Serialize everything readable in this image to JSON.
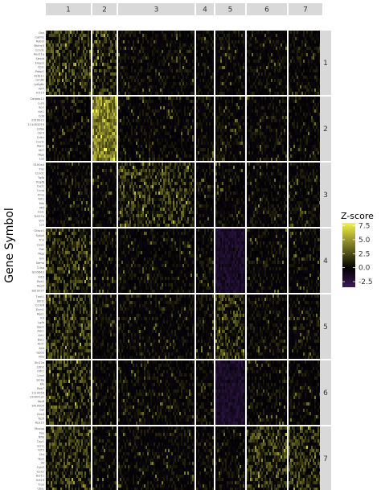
{
  "chart_data": {
    "type": "heatmap",
    "ylabel": "Gene Symbol",
    "column_facets": [
      "1",
      "2",
      "3",
      "4",
      "5",
      "6",
      "7"
    ],
    "row_facets": [
      "1",
      "2",
      "3",
      "4",
      "5",
      "6",
      "7"
    ],
    "legend": {
      "title": "Z-score",
      "placement": "right",
      "ticks": [
        7.5,
        5.0,
        2.5,
        0.0,
        -2.5
      ],
      "tick_labels": [
        "7.5",
        "5.0",
        "2.5",
        "0.0",
        "-2.5"
      ],
      "range": [
        -3.5,
        8
      ],
      "colors": {
        "low": "#3b1a5a",
        "mid": "#000000",
        "high": "#f5f24a"
      }
    },
    "genes_by_row_facet": [
      [
        "Gsn",
        "Calm1",
        "Rab1l",
        "Bhlhe3",
        "Ccnd1",
        "Aes11a",
        "Serpb",
        "Enpp2",
        "Cbj1",
        "Pabp1",
        "Actb11",
        "Gm6k",
        "Ly6g6c",
        "Kif7",
        "Krt19"
      ],
      [
        "Carpep12",
        "Lum",
        "Spn",
        "Krt1",
        "Cd9",
        "2310015",
        "1110032F4",
        "Cd9a",
        "Cbr3",
        "Cdkn",
        "Cxcl1",
        "Aqp1",
        "Klf7",
        "Mgp",
        "Lux"
      ],
      [
        "S100a4",
        "Tnc",
        "Ccnd1",
        "Tgfb",
        "Pcgf6",
        "Cyp1",
        "Ccnd",
        "Pmn",
        "Krt1",
        "Mbl",
        "Mtf",
        "Col1",
        "Tc527a",
        "Vim",
        "Lcn"
      ],
      [
        "Cfacc1",
        "Sytg4",
        "Tnn",
        "Cav1",
        "Pdk",
        "Mgp",
        "Gm",
        "Sema",
        "Crisp",
        "Gm5643",
        "Krt2",
        "Rps1",
        "Rps5",
        "1810037"
      ],
      [
        "Tnnt1",
        "Shtl1",
        "Ccdc8",
        "Ecm1",
        "Rgs1",
        "Kit",
        "Lgfb",
        "Spp1",
        "Abcc",
        "Krt1",
        "Bst1",
        "Ankr",
        "Ace",
        "Gpbb",
        "Hba"
      ],
      [
        "Slc12a",
        "Cdh1",
        "Olfr1",
        "Lmxl",
        "Slc4a",
        "Klk",
        "Rps7",
        "1110058",
        "1500012F",
        "Atp8",
        "1410004",
        "Gal",
        "Cbx4",
        "Trp5",
        "Rps15"
      ],
      [
        "Mucop",
        "Fos",
        "Nfib",
        "Cav1",
        "Scn1",
        "Krt5",
        "Ctrl",
        "Tspn",
        "Vil",
        "Cyb5",
        "Cbx1",
        "Bcl11",
        "Krt19",
        "Tnni",
        "Cbsc"
      ]
    ],
    "column_facet_widths": [
      56,
      30,
      95,
      22,
      37,
      50,
      42
    ],
    "row_facet_heights": [
      80,
      80,
      80,
      80,
      80,
      80,
      80
    ],
    "high_expression_blocks": [
      {
        "row_facet": "1",
        "column_facet": "1",
        "level": "moderate"
      },
      {
        "row_facet": "1",
        "column_facet": "2",
        "level": "moderate"
      },
      {
        "row_facet": "2",
        "column_facet": "2",
        "level": "high"
      },
      {
        "row_facet": "3",
        "column_facet": "3",
        "level": "moderate"
      },
      {
        "row_facet": "4",
        "column_facet": "1",
        "level": "moderate"
      },
      {
        "row_facet": "5",
        "column_facet": "1",
        "level": "moderate"
      },
      {
        "row_facet": "5",
        "column_facet": "5",
        "level": "moderate"
      },
      {
        "row_facet": "6",
        "column_facet": "1",
        "level": "moderate"
      },
      {
        "row_facet": "7",
        "column_facet": "1",
        "level": "moderate"
      },
      {
        "row_facet": "7",
        "column_facet": "6",
        "level": "moderate"
      },
      {
        "row_facet": "7",
        "column_facet": "7",
        "level": "moderate"
      }
    ],
    "low_expression_blocks": [
      {
        "row_facet": "4",
        "column_facet": "5",
        "level": "low"
      },
      {
        "row_facet": "6",
        "column_facet": "5",
        "level": "low"
      }
    ]
  }
}
